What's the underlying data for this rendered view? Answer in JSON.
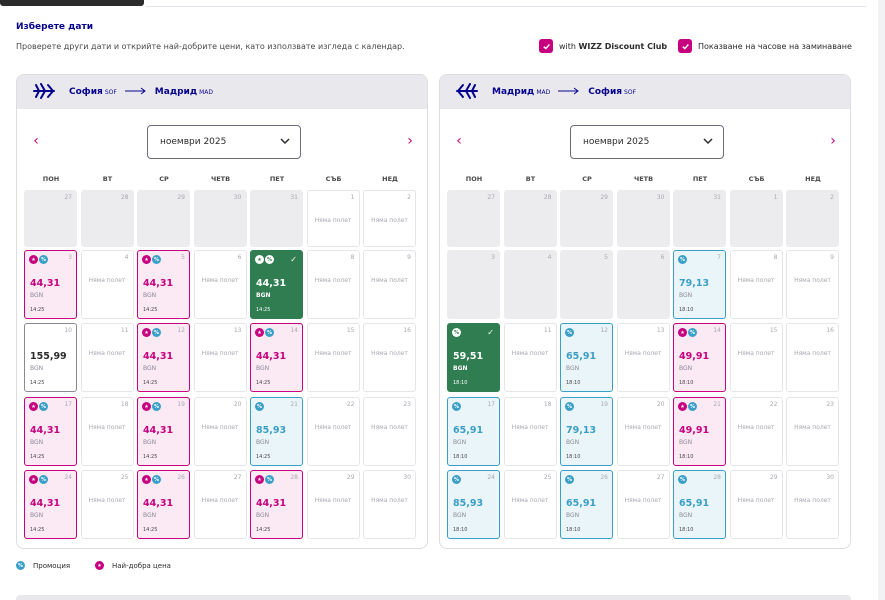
{
  "section": {
    "title": "Изберете дати",
    "subtitle": "Проверете други дати и открийте най-добрите цени, като използвате изгледа с календар."
  },
  "options": {
    "discount_prefix": "with ",
    "discount_brand": "WIZZ Discount Club",
    "discount_checked": true,
    "times_label": "Показване на часове на заминаване",
    "times_checked": true
  },
  "weekdays": [
    "ПОН",
    "ВТ",
    "СР",
    "ЧЕТВ",
    "ПЕТ",
    "СЪБ",
    "НЕД"
  ],
  "no_flight": "Няма полет",
  "colors": {
    "brand": "#c6007e",
    "navy": "#06038d",
    "promo": "#3a9fc6",
    "selected": "#317d52"
  },
  "outbound": {
    "from": "София",
    "from_code": "SOF",
    "to": "Мадрид",
    "to_code": "MAD",
    "month": "ноември 2025",
    "prev_icon": "chevron-left-icon",
    "next_icon": "chevron-right-icon",
    "days": [
      {
        "n": "27",
        "type": "pad"
      },
      {
        "n": "28",
        "type": "pad"
      },
      {
        "n": "29",
        "type": "pad"
      },
      {
        "n": "30",
        "type": "pad"
      },
      {
        "n": "31",
        "type": "pad"
      },
      {
        "n": "1",
        "type": "na"
      },
      {
        "n": "2",
        "type": "na"
      },
      {
        "n": "3",
        "type": "pink",
        "price": "44,31",
        "cur": "BGN",
        "time": "14:25",
        "badges": [
          "star",
          "pct"
        ]
      },
      {
        "n": "4",
        "type": "na"
      },
      {
        "n": "5",
        "type": "pink",
        "price": "44,31",
        "cur": "BGN",
        "time": "14:25",
        "badges": [
          "star",
          "pct"
        ]
      },
      {
        "n": "6",
        "type": "na"
      },
      {
        "n": "7",
        "type": "green",
        "price": "44,31",
        "cur": "BGN",
        "time": "14:25",
        "badges": [
          "star",
          "pct"
        ],
        "selected": true
      },
      {
        "n": "8",
        "type": "na"
      },
      {
        "n": "9",
        "type": "na"
      },
      {
        "n": "10",
        "type": "plain",
        "price": "155,99",
        "cur": "BGN",
        "time": "14:25",
        "badges": []
      },
      {
        "n": "11",
        "type": "na"
      },
      {
        "n": "12",
        "type": "pink",
        "price": "44,31",
        "cur": "BGN",
        "time": "14:25",
        "badges": [
          "star",
          "pct"
        ]
      },
      {
        "n": "13",
        "type": "na"
      },
      {
        "n": "14",
        "type": "pink",
        "price": "44,31",
        "cur": "BGN",
        "time": "14:25",
        "badges": [
          "star",
          "pct"
        ]
      },
      {
        "n": "15",
        "type": "na"
      },
      {
        "n": "16",
        "type": "na"
      },
      {
        "n": "17",
        "type": "pink",
        "price": "44,31",
        "cur": "BGN",
        "time": "14:25",
        "badges": [
          "star",
          "pct"
        ]
      },
      {
        "n": "18",
        "type": "na"
      },
      {
        "n": "19",
        "type": "pink",
        "price": "44,31",
        "cur": "BGN",
        "time": "14:25",
        "badges": [
          "star",
          "pct"
        ]
      },
      {
        "n": "20",
        "type": "na"
      },
      {
        "n": "21",
        "type": "blue",
        "price": "85,93",
        "cur": "BGN",
        "time": "14:25",
        "badges": [
          "pct"
        ]
      },
      {
        "n": "22",
        "type": "na"
      },
      {
        "n": "23",
        "type": "na"
      },
      {
        "n": "24",
        "type": "pink",
        "price": "44,31",
        "cur": "BGN",
        "time": "14:25",
        "badges": [
          "star",
          "pct"
        ]
      },
      {
        "n": "25",
        "type": "na"
      },
      {
        "n": "26",
        "type": "pink",
        "price": "44,31",
        "cur": "BGN",
        "time": "14:25",
        "badges": [
          "star",
          "pct"
        ]
      },
      {
        "n": "27",
        "type": "na"
      },
      {
        "n": "28",
        "type": "pink",
        "price": "44,31",
        "cur": "BGN",
        "time": "14:25",
        "badges": [
          "star",
          "pct"
        ]
      },
      {
        "n": "29",
        "type": "na"
      },
      {
        "n": "30",
        "type": "na"
      }
    ]
  },
  "inbound": {
    "from": "Мадрид",
    "from_code": "MAD",
    "to": "София",
    "to_code": "SOF",
    "month": "ноември 2025",
    "prev_icon": "chevron-left-icon",
    "next_icon": "chevron-right-icon",
    "days": [
      {
        "n": "27",
        "type": "pad"
      },
      {
        "n": "28",
        "type": "pad"
      },
      {
        "n": "29",
        "type": "pad"
      },
      {
        "n": "30",
        "type": "pad"
      },
      {
        "n": "31",
        "type": "pad"
      },
      {
        "n": "1",
        "type": "pad"
      },
      {
        "n": "2",
        "type": "pad"
      },
      {
        "n": "3",
        "type": "pad"
      },
      {
        "n": "4",
        "type": "pad"
      },
      {
        "n": "5",
        "type": "pad"
      },
      {
        "n": "6",
        "type": "pad"
      },
      {
        "n": "7",
        "type": "blue",
        "price": "79,13",
        "cur": "BGN",
        "time": "18:10",
        "badges": [
          "pct"
        ]
      },
      {
        "n": "8",
        "type": "na"
      },
      {
        "n": "9",
        "type": "na"
      },
      {
        "n": "10",
        "type": "green",
        "price": "59,51",
        "cur": "BGN",
        "time": "18:10",
        "badges": [
          "pct"
        ],
        "selected": true
      },
      {
        "n": "11",
        "type": "na"
      },
      {
        "n": "12",
        "type": "blue",
        "price": "65,91",
        "cur": "BGN",
        "time": "18:10",
        "badges": [
          "pct"
        ]
      },
      {
        "n": "13",
        "type": "na"
      },
      {
        "n": "14",
        "type": "pink",
        "price": "49,91",
        "cur": "BGN",
        "time": "18:10",
        "badges": [
          "star",
          "pct"
        ]
      },
      {
        "n": "15",
        "type": "na"
      },
      {
        "n": "16",
        "type": "na"
      },
      {
        "n": "17",
        "type": "blue",
        "price": "65,91",
        "cur": "BGN",
        "time": "18:10",
        "badges": [
          "pct"
        ]
      },
      {
        "n": "18",
        "type": "na"
      },
      {
        "n": "19",
        "type": "blue",
        "price": "79,13",
        "cur": "BGN",
        "time": "18:10",
        "badges": [
          "pct"
        ]
      },
      {
        "n": "20",
        "type": "na"
      },
      {
        "n": "21",
        "type": "pink",
        "price": "49,91",
        "cur": "BGN",
        "time": "18:10",
        "badges": [
          "star",
          "pct"
        ]
      },
      {
        "n": "22",
        "type": "na"
      },
      {
        "n": "23",
        "type": "na"
      },
      {
        "n": "24",
        "type": "blue",
        "price": "85,93",
        "cur": "BGN",
        "time": "18:10",
        "badges": [
          "pct"
        ]
      },
      {
        "n": "25",
        "type": "na"
      },
      {
        "n": "26",
        "type": "blue",
        "price": "65,91",
        "cur": "BGN",
        "time": "18:10",
        "badges": [
          "pct"
        ]
      },
      {
        "n": "27",
        "type": "na"
      },
      {
        "n": "28",
        "type": "blue",
        "price": "65,91",
        "cur": "BGN",
        "time": "18:10",
        "badges": [
          "pct"
        ]
      },
      {
        "n": "29",
        "type": "na"
      },
      {
        "n": "30",
        "type": "na"
      }
    ]
  },
  "legend": {
    "promo_label": "Промоция",
    "best_label": "Най-добра цена"
  }
}
